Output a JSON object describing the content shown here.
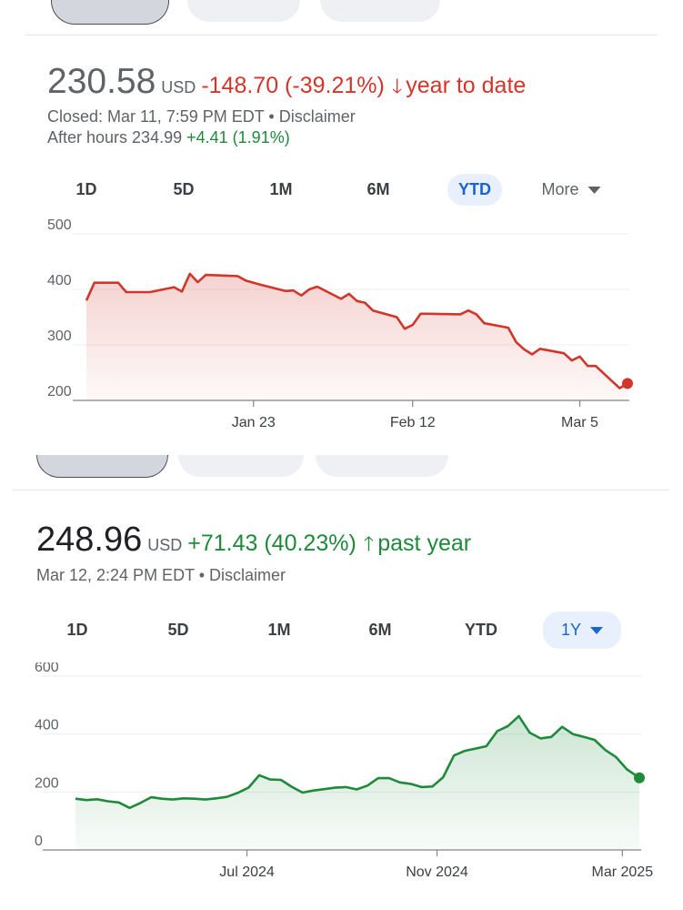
{
  "top_quote": {
    "price": "230.58",
    "currency": "USD",
    "change": "-148.70 (-39.21%)",
    "arrow": "🡓",
    "period": "year to date",
    "closed_text": "Closed: Mar 11, 7:59 PM EDT • Disclaimer",
    "after_hours_label": "After hours 234.99",
    "after_hours_change": "+4.41 (1.91%)",
    "ranges": [
      "1D",
      "5D",
      "1M",
      "6M",
      "YTD"
    ],
    "selected_range": "YTD",
    "more_label": "More"
  },
  "bottom_quote": {
    "price": "248.96",
    "currency": "USD",
    "change": "+71.43 (40.23%)",
    "arrow": "🡑",
    "period": "past year",
    "time_text": "Mar 12, 2:24 PM EDT • Disclaimer",
    "ranges": [
      "1D",
      "5D",
      "1M",
      "6M",
      "YTD"
    ],
    "selected_range": "1Y"
  },
  "colors": {
    "negative": "#d2352a",
    "positive": "#1e8a3a",
    "accent": "#1a62d6"
  },
  "chart_data": [
    {
      "type": "area",
      "x_type": "date",
      "x": [
        "2025-01-02",
        "2025-01-03",
        "2025-01-06",
        "2025-01-07",
        "2025-01-08",
        "2025-01-10",
        "2025-01-13",
        "2025-01-14",
        "2025-01-15",
        "2025-01-16",
        "2025-01-17",
        "2025-01-21",
        "2025-01-22",
        "2025-01-23",
        "2025-01-24",
        "2025-01-27",
        "2025-01-28",
        "2025-01-29",
        "2025-01-30",
        "2025-01-31",
        "2025-02-03",
        "2025-02-04",
        "2025-02-05",
        "2025-02-06",
        "2025-02-07",
        "2025-02-10",
        "2025-02-11",
        "2025-02-12",
        "2025-02-13",
        "2025-02-14",
        "2025-02-18",
        "2025-02-19",
        "2025-02-20",
        "2025-02-21",
        "2025-02-24",
        "2025-02-25",
        "2025-02-26",
        "2025-02-27",
        "2025-02-28",
        "2025-03-03",
        "2025-03-04",
        "2025-03-05",
        "2025-03-06",
        "2025-03-07",
        "2025-03-10",
        "2025-03-11"
      ],
      "y": [
        380,
        412,
        412,
        395,
        395,
        395,
        404,
        396,
        428,
        413,
        426,
        424,
        416,
        412,
        408,
        397,
        398,
        389,
        400,
        405,
        383,
        392,
        379,
        376,
        362,
        350,
        329,
        336,
        356,
        356,
        355,
        362,
        355,
        339,
        331,
        305,
        292,
        283,
        293,
        285,
        272,
        279,
        262,
        262,
        222,
        230.58
      ],
      "xticks": [
        {
          "date": "2025-01-23",
          "label": "Jan 23"
        },
        {
          "date": "2025-02-12",
          "label": "Feb 12"
        },
        {
          "date": "2025-03-05",
          "label": "Mar 5"
        }
      ],
      "yticks": [
        200,
        300,
        400,
        500
      ],
      "ylim": [
        200,
        500
      ],
      "xlim": [
        "2025-01-02",
        "2025-03-11"
      ],
      "grid": true,
      "color": "#d2352a"
    },
    {
      "type": "area",
      "x_type": "date",
      "x": [
        "2024-03-12",
        "2024-03-19",
        "2024-03-26",
        "2024-04-02",
        "2024-04-09",
        "2024-04-16",
        "2024-04-23",
        "2024-04-30",
        "2024-05-07",
        "2024-05-14",
        "2024-05-21",
        "2024-05-28",
        "2024-06-04",
        "2024-06-11",
        "2024-06-18",
        "2024-06-25",
        "2024-07-02",
        "2024-07-09",
        "2024-07-16",
        "2024-07-23",
        "2024-07-30",
        "2024-08-06",
        "2024-08-13",
        "2024-08-20",
        "2024-08-27",
        "2024-09-03",
        "2024-09-10",
        "2024-09-17",
        "2024-09-24",
        "2024-10-01",
        "2024-10-08",
        "2024-10-15",
        "2024-10-22",
        "2024-10-29",
        "2024-11-05",
        "2024-11-12",
        "2024-11-19",
        "2024-11-26",
        "2024-12-03",
        "2024-12-10",
        "2024-12-17",
        "2024-12-24",
        "2024-12-31",
        "2025-01-07",
        "2025-01-14",
        "2025-01-21",
        "2025-01-28",
        "2025-02-04",
        "2025-02-11",
        "2025-02-18",
        "2025-02-25",
        "2025-03-04",
        "2025-03-12"
      ],
      "y": [
        177,
        172,
        175,
        168,
        164,
        145,
        162,
        182,
        177,
        174,
        178,
        177,
        174,
        178,
        183,
        197,
        215,
        258,
        243,
        242,
        218,
        198,
        205,
        210,
        215,
        217,
        209,
        222,
        248,
        248,
        233,
        228,
        217,
        219,
        251,
        326,
        342,
        350,
        358,
        410,
        428,
        462,
        405,
        385,
        390,
        425,
        400,
        390,
        380,
        345,
        320,
        278,
        248.96
      ],
      "xticks": [
        {
          "date": "2024-07-01",
          "label": "Jul 2024"
        },
        {
          "date": "2024-11-01",
          "label": "Nov 2024"
        },
        {
          "date": "2025-03-01",
          "label": "Mar 2025"
        }
      ],
      "yticks": [
        0,
        200,
        400,
        600
      ],
      "ylim": [
        0,
        600
      ],
      "xlim": [
        "2024-03-12",
        "2025-03-12"
      ],
      "grid": true,
      "color": "#1e8a3a"
    }
  ]
}
